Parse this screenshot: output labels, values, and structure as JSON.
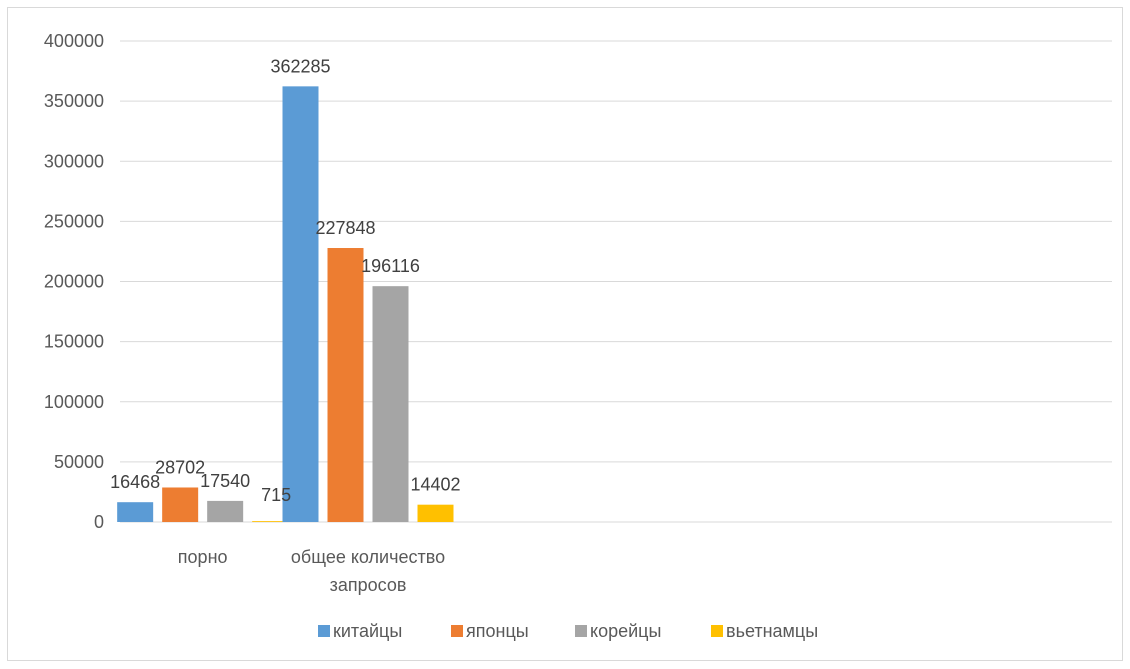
{
  "chart_data": {
    "type": "bar",
    "categories": [
      [
        "порно"
      ],
      [
        "общее количество",
        "запросов"
      ]
    ],
    "series": [
      {
        "name": "китайцы",
        "color": "#5b9bd5",
        "values": [
          16468,
          362285
        ]
      },
      {
        "name": "японцы",
        "color": "#ed7d31",
        "values": [
          28702,
          227848
        ]
      },
      {
        "name": "корейцы",
        "color": "#a5a5a5",
        "values": [
          17540,
          196116
        ]
      },
      {
        "name": "вьетнамцы",
        "color": "#ffc000",
        "values": [
          715,
          14402
        ]
      }
    ],
    "yticks": [
      "0",
      "50000",
      "100000",
      "150000",
      "200000",
      "250000",
      "300000",
      "350000",
      "400000"
    ],
    "ylim": [
      0,
      400000
    ],
    "grid": true,
    "gridline_color": "#d9d9d9",
    "legend_position": "bottom",
    "data_labels": true,
    "num_category_slots": 6
  }
}
